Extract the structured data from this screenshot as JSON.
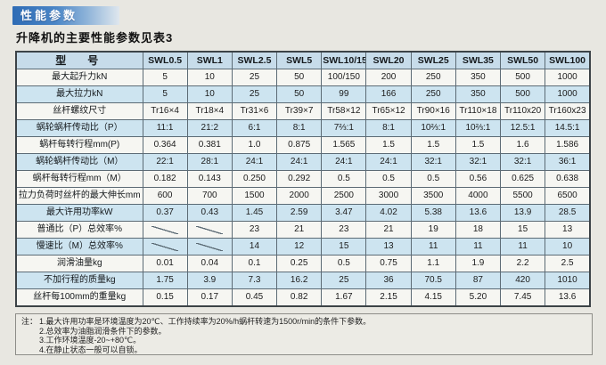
{
  "page": {
    "badge": "性能参数",
    "subtitle": "升降机的主要性能参数见表3"
  },
  "table": {
    "header": [
      "型　号",
      "SWL0.5",
      "SWL1",
      "SWL2.5",
      "SWL5",
      "SWL10/15",
      "SWL20",
      "SWL25",
      "SWL35",
      "SWL50",
      "SWL100"
    ],
    "rows": [
      {
        "label": "最大起升力kN",
        "shade": "white",
        "values": [
          "5",
          "10",
          "25",
          "50",
          "100/150",
          "200",
          "250",
          "350",
          "500",
          "1000"
        ]
      },
      {
        "label": "最大拉力kN",
        "shade": "blue",
        "values": [
          "5",
          "10",
          "25",
          "50",
          "99",
          "166",
          "250",
          "350",
          "500",
          "1000"
        ]
      },
      {
        "label": "丝杆螺纹尺寸",
        "shade": "white",
        "values": [
          "Tr16×4",
          "Tr18×4",
          "Tr31×6",
          "Tr39×7",
          "Tr58×12",
          "Tr65×12",
          "Tr90×16",
          "Tr110×18",
          "Tr110x20",
          "Tr160x23"
        ]
      },
      {
        "label": "蜗轮蜗杆传动比（P）",
        "shade": "blue",
        "values": [
          "11:1",
          "21:2",
          "6:1",
          "8:1",
          "7⅔:1",
          "8:1",
          "10⅔:1",
          "10⅔:1",
          "12.5:1",
          "14.5:1"
        ]
      },
      {
        "label": "蜗杆每转行程mm(P)",
        "shade": "white",
        "values": [
          "0.364",
          "0.381",
          "1.0",
          "0.875",
          "1.565",
          "1.5",
          "1.5",
          "1.5",
          "1.6",
          "1.586"
        ]
      },
      {
        "label": "蜗轮蜗杆传动比（M）",
        "shade": "blue",
        "values": [
          "22:1",
          "28:1",
          "24:1",
          "24:1",
          "24:1",
          "24:1",
          "32:1",
          "32:1",
          "32:1",
          "36:1"
        ]
      },
      {
        "label": "蜗杆每转行程mm（M）",
        "shade": "white",
        "values": [
          "0.182",
          "0.143",
          "0.250",
          "0.292",
          "0.5",
          "0.5",
          "0.5",
          "0.56",
          "0.625",
          "0.638"
        ]
      },
      {
        "label": "拉力负荷时丝杆的最大伸长mm",
        "shade": "white",
        "values": [
          "600",
          "700",
          "1500",
          "2000",
          "2500",
          "3000",
          "3500",
          "4000",
          "5500",
          "6500"
        ]
      },
      {
        "label": "最大许用功率kW",
        "shade": "blue",
        "values": [
          "0.37",
          "0.43",
          "1.45",
          "2.59",
          "3.47",
          "4.02",
          "5.38",
          "13.6",
          "13.9",
          "28.5"
        ]
      },
      {
        "label": "普通比（P）总效率%",
        "shade": "white",
        "values": [
          "╱",
          "╱",
          "23",
          "21",
          "23",
          "21",
          "19",
          "18",
          "15",
          "13"
        ]
      },
      {
        "label": "慢速比（M）总效率%",
        "shade": "blue",
        "values": [
          "╱",
          "╱",
          "14",
          "12",
          "15",
          "13",
          "11",
          "11",
          "11",
          "10"
        ]
      },
      {
        "label": "润滑油量kg",
        "shade": "white",
        "values": [
          "0.01",
          "0.04",
          "0.1",
          "0.25",
          "0.5",
          "0.75",
          "1.1",
          "1.9",
          "2.2",
          "2.5"
        ]
      },
      {
        "label": "不加行程的质量kg",
        "shade": "blue",
        "values": [
          "1.75",
          "3.9",
          "7.3",
          "16.2",
          "25",
          "36",
          "70.5",
          "87",
          "420",
          "1010"
        ]
      },
      {
        "label": "丝杆每100mm的重量kg",
        "shade": "white",
        "values": [
          "0.15",
          "0.17",
          "0.45",
          "0.82",
          "1.67",
          "2.15",
          "4.15",
          "5.20",
          "7.45",
          "13.6"
        ]
      }
    ]
  },
  "notes": {
    "prefix": "注：",
    "lines": [
      "1.最大许用功率是环境温度为20℃、工作持续率为20%/h蜗杆转速为1500r/min的条件下参数。",
      "2.总效率为油脂润滑条件下的参数。",
      "3.工作环境温度-20~+80℃。",
      "4.在静止状态一般可以自锁。"
    ]
  }
}
